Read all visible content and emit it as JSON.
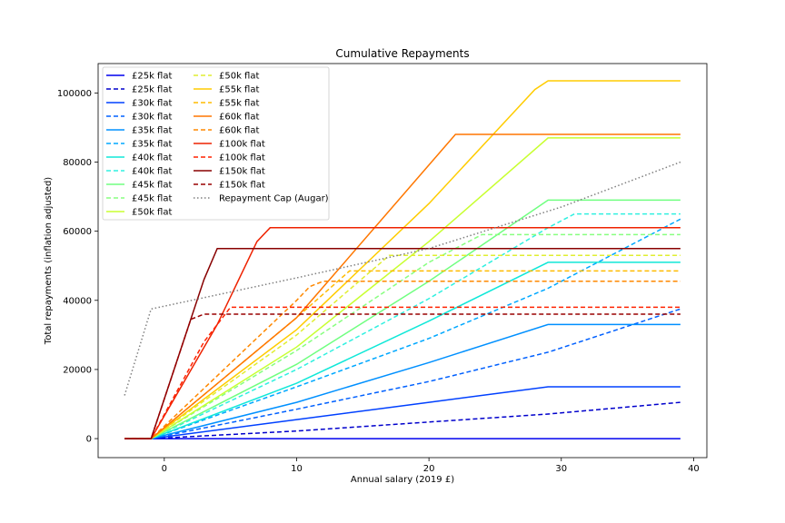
{
  "chart_data": {
    "type": "line",
    "title": "Cumulative Repayments",
    "xlabel": "Annual salary (2019 £)",
    "ylabel": "Total repayments (inflation adjusted)",
    "xlim": [
      -5,
      41
    ],
    "ylim": [
      -5500,
      108500
    ],
    "xticks": [
      0,
      10,
      20,
      30,
      40
    ],
    "yticks": [
      0,
      20000,
      40000,
      60000,
      80000,
      100000
    ],
    "grid": false,
    "legend_placement": "top-left",
    "series": [
      {
        "name": "£25k flat",
        "color": "#0000ee",
        "dash": "solid",
        "points": [
          [
            -3,
            0
          ],
          [
            39,
            0
          ]
        ]
      },
      {
        "name": "£25k flat",
        "color": "#0000cc",
        "dash": "dashed",
        "points": [
          [
            -3,
            0
          ],
          [
            -1,
            0
          ],
          [
            10,
            2200
          ],
          [
            20,
            4800
          ],
          [
            29,
            7100
          ],
          [
            39,
            10500
          ]
        ]
      },
      {
        "name": "£30k flat",
        "color": "#0040ff",
        "dash": "solid",
        "points": [
          [
            -3,
            0
          ],
          [
            -1,
            0
          ],
          [
            10,
            5500
          ],
          [
            20,
            10500
          ],
          [
            29,
            15000
          ],
          [
            39,
            15000
          ]
        ]
      },
      {
        "name": "£30k flat",
        "color": "#0060ff",
        "dash": "dashed",
        "points": [
          [
            -3,
            0
          ],
          [
            -1,
            0
          ],
          [
            10,
            8500
          ],
          [
            20,
            16500
          ],
          [
            29,
            25000
          ],
          [
            39,
            37500
          ]
        ]
      },
      {
        "name": "£35k flat",
        "color": "#0090ff",
        "dash": "solid",
        "points": [
          [
            -3,
            0
          ],
          [
            -1,
            0
          ],
          [
            10,
            10500
          ],
          [
            20,
            22000
          ],
          [
            29,
            33000
          ],
          [
            39,
            33000
          ]
        ]
      },
      {
        "name": "£35k flat",
        "color": "#00a8ff",
        "dash": "dashed",
        "points": [
          [
            -3,
            0
          ],
          [
            -1,
            0
          ],
          [
            10,
            15000
          ],
          [
            20,
            29000
          ],
          [
            29,
            43500
          ],
          [
            39,
            63500
          ]
        ]
      },
      {
        "name": "£40k flat",
        "color": "#10e8d8",
        "dash": "solid",
        "points": [
          [
            -3,
            0
          ],
          [
            -1,
            0
          ],
          [
            10,
            16000
          ],
          [
            20,
            34000
          ],
          [
            29,
            51000
          ],
          [
            39,
            51000
          ]
        ]
      },
      {
        "name": "£40k flat",
        "color": "#30f0e0",
        "dash": "dashed",
        "points": [
          [
            -3,
            0
          ],
          [
            -1,
            0
          ],
          [
            10,
            20000
          ],
          [
            20,
            40500
          ],
          [
            29,
            61000
          ],
          [
            31,
            65000
          ],
          [
            39,
            65000
          ]
        ]
      },
      {
        "name": "£45k flat",
        "color": "#70ff80",
        "dash": "solid",
        "points": [
          [
            -3,
            0
          ],
          [
            -1,
            0
          ],
          [
            10,
            21500
          ],
          [
            20,
            45500
          ],
          [
            29,
            69000
          ],
          [
            39,
            69000
          ]
        ]
      },
      {
        "name": "£45k flat",
        "color": "#88ff80",
        "dash": "dashed",
        "points": [
          [
            -3,
            0
          ],
          [
            -1,
            0
          ],
          [
            10,
            25500
          ],
          [
            20,
            51000
          ],
          [
            24,
            59000
          ],
          [
            39,
            59000
          ]
        ]
      },
      {
        "name": "£50k flat",
        "color": "#c8ff30",
        "dash": "solid",
        "points": [
          [
            -3,
            0
          ],
          [
            -1,
            0
          ],
          [
            10,
            26500
          ],
          [
            20,
            57000
          ],
          [
            29,
            87000
          ],
          [
            39,
            87000
          ]
        ]
      },
      {
        "name": "£50k flat",
        "color": "#e0ee30",
        "dash": "dashed",
        "points": [
          [
            -3,
            0
          ],
          [
            -1,
            0
          ],
          [
            10,
            30000
          ],
          [
            17,
            53000
          ],
          [
            39,
            53000
          ]
        ]
      },
      {
        "name": "£55k flat",
        "color": "#ffcc00",
        "dash": "solid",
        "points": [
          [
            -3,
            0
          ],
          [
            -1,
            0
          ],
          [
            10,
            31500
          ],
          [
            20,
            68000
          ],
          [
            28,
            101000
          ],
          [
            29,
            103500
          ],
          [
            39,
            103500
          ]
        ]
      },
      {
        "name": "£55k flat",
        "color": "#ffbb00",
        "dash": "dashed",
        "points": [
          [
            -3,
            0
          ],
          [
            -1,
            0
          ],
          [
            10,
            35000
          ],
          [
            14,
            48500
          ],
          [
            39,
            48500
          ]
        ]
      },
      {
        "name": "£60k flat",
        "color": "#ff7700",
        "dash": "solid",
        "points": [
          [
            -3,
            0
          ],
          [
            -1,
            0
          ],
          [
            10,
            35000
          ],
          [
            22,
            88000
          ],
          [
            39,
            88000
          ]
        ]
      },
      {
        "name": "£60k flat",
        "color": "#ff8800",
        "dash": "dashed",
        "points": [
          [
            -3,
            0
          ],
          [
            -1,
            0
          ],
          [
            10,
            40000
          ],
          [
            11,
            44000
          ],
          [
            12,
            45500
          ],
          [
            39,
            45500
          ]
        ]
      },
      {
        "name": "£100k flat",
        "color": "#ee2200",
        "dash": "solid",
        "points": [
          [
            -3,
            0
          ],
          [
            -1,
            0
          ],
          [
            4,
            33000
          ],
          [
            7,
            57000
          ],
          [
            8,
            61000
          ],
          [
            39,
            61000
          ]
        ]
      },
      {
        "name": "£100k flat",
        "color": "#ff2200",
        "dash": "dashed",
        "points": [
          [
            -3,
            0
          ],
          [
            -1,
            0
          ],
          [
            3,
            28000
          ],
          [
            5,
            38000
          ],
          [
            39,
            38000
          ]
        ]
      },
      {
        "name": "£150k flat",
        "color": "#880000",
        "dash": "solid",
        "points": [
          [
            -3,
            0
          ],
          [
            -1,
            0
          ],
          [
            3,
            46000
          ],
          [
            4,
            55000
          ],
          [
            39,
            55000
          ]
        ]
      },
      {
        "name": "£150k flat",
        "color": "#990000",
        "dash": "dashed",
        "points": [
          [
            -3,
            0
          ],
          [
            -1,
            0
          ],
          [
            2,
            34500
          ],
          [
            3,
            36000
          ],
          [
            39,
            36000
          ]
        ]
      },
      {
        "name": "Repayment Cap (Augar)",
        "color": "#808080",
        "dash": "dotted",
        "points": [
          [
            -3,
            12500
          ],
          [
            -1,
            37500
          ],
          [
            10,
            46500
          ],
          [
            20,
            55000
          ],
          [
            30,
            67000
          ],
          [
            39,
            80000
          ]
        ]
      }
    ]
  }
}
